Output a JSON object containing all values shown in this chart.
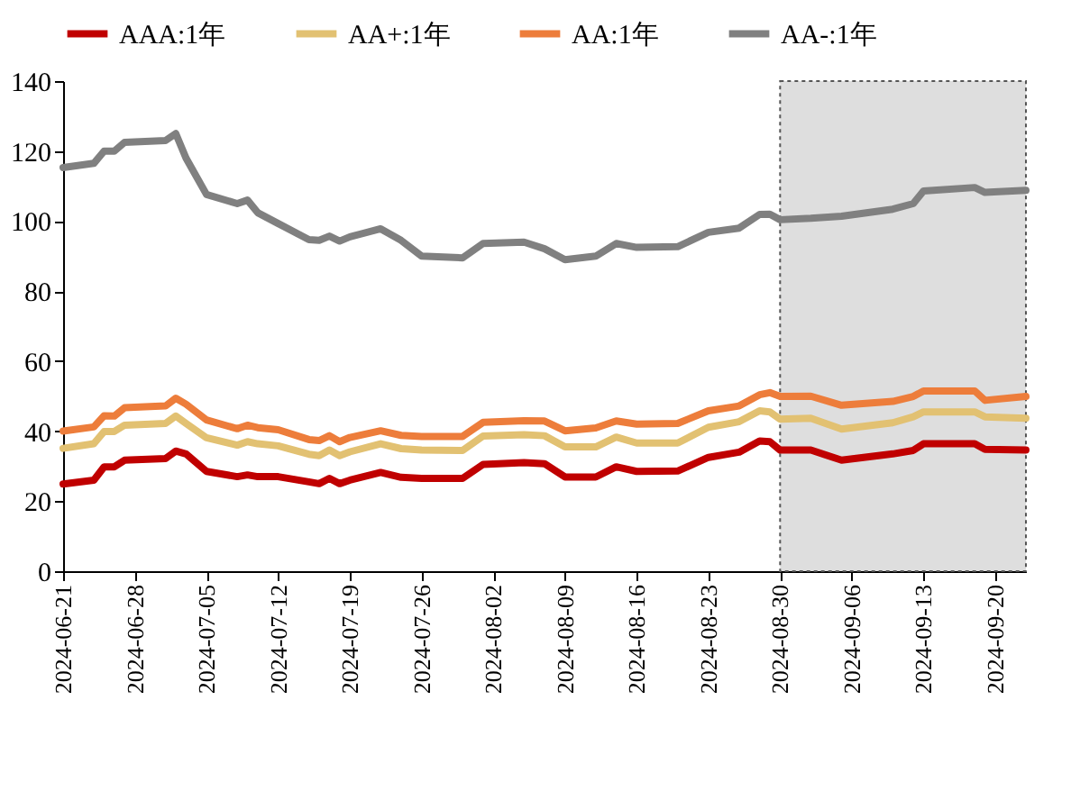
{
  "chart_data": {
    "type": "line",
    "x": [
      "2024-06-21",
      "2024-06-24",
      "2024-06-25",
      "2024-06-26",
      "2024-06-27",
      "2024-07-01",
      "2024-07-02",
      "2024-07-03",
      "2024-07-05",
      "2024-07-08",
      "2024-07-09",
      "2024-07-10",
      "2024-07-12",
      "2024-07-15",
      "2024-07-16",
      "2024-07-17",
      "2024-07-18",
      "2024-07-19",
      "2024-07-22",
      "2024-07-24",
      "2024-07-26",
      "2024-07-30",
      "2024-08-01",
      "2024-08-05",
      "2024-08-07",
      "2024-08-09",
      "2024-08-12",
      "2024-08-14",
      "2024-08-16",
      "2024-08-20",
      "2024-08-23",
      "2024-08-26",
      "2024-08-28",
      "2024-08-29",
      "2024-08-30",
      "2024-09-02",
      "2024-09-05",
      "2024-09-10",
      "2024-09-12",
      "2024-09-13",
      "2024-09-18",
      "2024-09-19",
      "2024-09-23"
    ],
    "series": [
      {
        "name": "AAA:1年",
        "color": "#c00000",
        "values": [
          24.9,
          26,
          29.8,
          29.8,
          31.7,
          32.2,
          34.3,
          33.5,
          28.5,
          27,
          27.5,
          27,
          27,
          25.5,
          25,
          26.5,
          25,
          26,
          28.2,
          26.8,
          26.5,
          26.5,
          30.5,
          31,
          30.7,
          26.9,
          26.9,
          29.8,
          28.5,
          28.6,
          32.5,
          34,
          37.2,
          37,
          34.6,
          34.6,
          31.7,
          33.5,
          34.5,
          36.4,
          36.4,
          34.8,
          34.6
        ]
      },
      {
        "name": "AA+:1年",
        "color": "#e2c172",
        "values": [
          35.1,
          36.4,
          39.9,
          39.9,
          41.7,
          42.2,
          44.3,
          42.2,
          38.1,
          36,
          37,
          36.4,
          35.8,
          33.4,
          33,
          34.6,
          33,
          34.1,
          36.4,
          35,
          34.6,
          34.5,
          38.6,
          39,
          38.7,
          35.5,
          35.5,
          38.3,
          36.6,
          36.6,
          41.1,
          42.7,
          45.8,
          45.5,
          43.4,
          43.7,
          40.6,
          42.4,
          44.1,
          45.5,
          45.5,
          44.1,
          43.7
        ]
      },
      {
        "name": "AA:1年",
        "color": "#ed7d3b",
        "values": [
          40,
          41.2,
          44.4,
          44.3,
          46.7,
          47.2,
          49.4,
          47.7,
          43.2,
          40.7,
          41.7,
          41,
          40.4,
          37.6,
          37.3,
          38.7,
          37,
          38.2,
          40.1,
          38.8,
          38.5,
          38.5,
          42.5,
          43,
          42.9,
          40.1,
          40.9,
          42.9,
          42,
          42.2,
          45.8,
          47.2,
          50.4,
          51,
          49.9,
          50,
          47.4,
          48.5,
          49.9,
          51.5,
          51.5,
          48.8,
          49.9
        ]
      },
      {
        "name": "AA-:1年",
        "color": "#808080",
        "values": [
          115.3,
          116.5,
          120,
          120,
          122.5,
          123,
          125,
          118,
          107.6,
          105,
          106,
          102.4,
          99.3,
          94.7,
          94.5,
          95.7,
          94.3,
          95.5,
          97.8,
          94.5,
          90,
          89.5,
          93.6,
          94,
          92.1,
          89,
          90,
          93.6,
          92.5,
          92.7,
          96.8,
          98,
          101.9,
          102,
          100.4,
          100.8,
          101.4,
          103.4,
          105,
          108.6,
          109.6,
          108.2,
          108.8
        ]
      }
    ],
    "xlim": [
      "2024-06-21",
      "2024-09-23"
    ],
    "xticks": [
      "2024-06-21",
      "2024-06-28",
      "2024-07-05",
      "2024-07-12",
      "2024-07-19",
      "2024-07-26",
      "2024-08-02",
      "2024-08-09",
      "2024-08-16",
      "2024-08-23",
      "2024-08-30",
      "2024-09-06",
      "2024-09-13",
      "2024-09-20"
    ],
    "ylim": [
      0,
      140
    ],
    "yticks": [
      0,
      20,
      40,
      60,
      80,
      100,
      120,
      140
    ],
    "bands": [
      {
        "axis": "x",
        "from": "2024-08-30",
        "to": "2024-09-23",
        "color": "#dedede"
      }
    ],
    "grid": false,
    "legend": "top",
    "marker": "none",
    "line_style": "solid"
  }
}
